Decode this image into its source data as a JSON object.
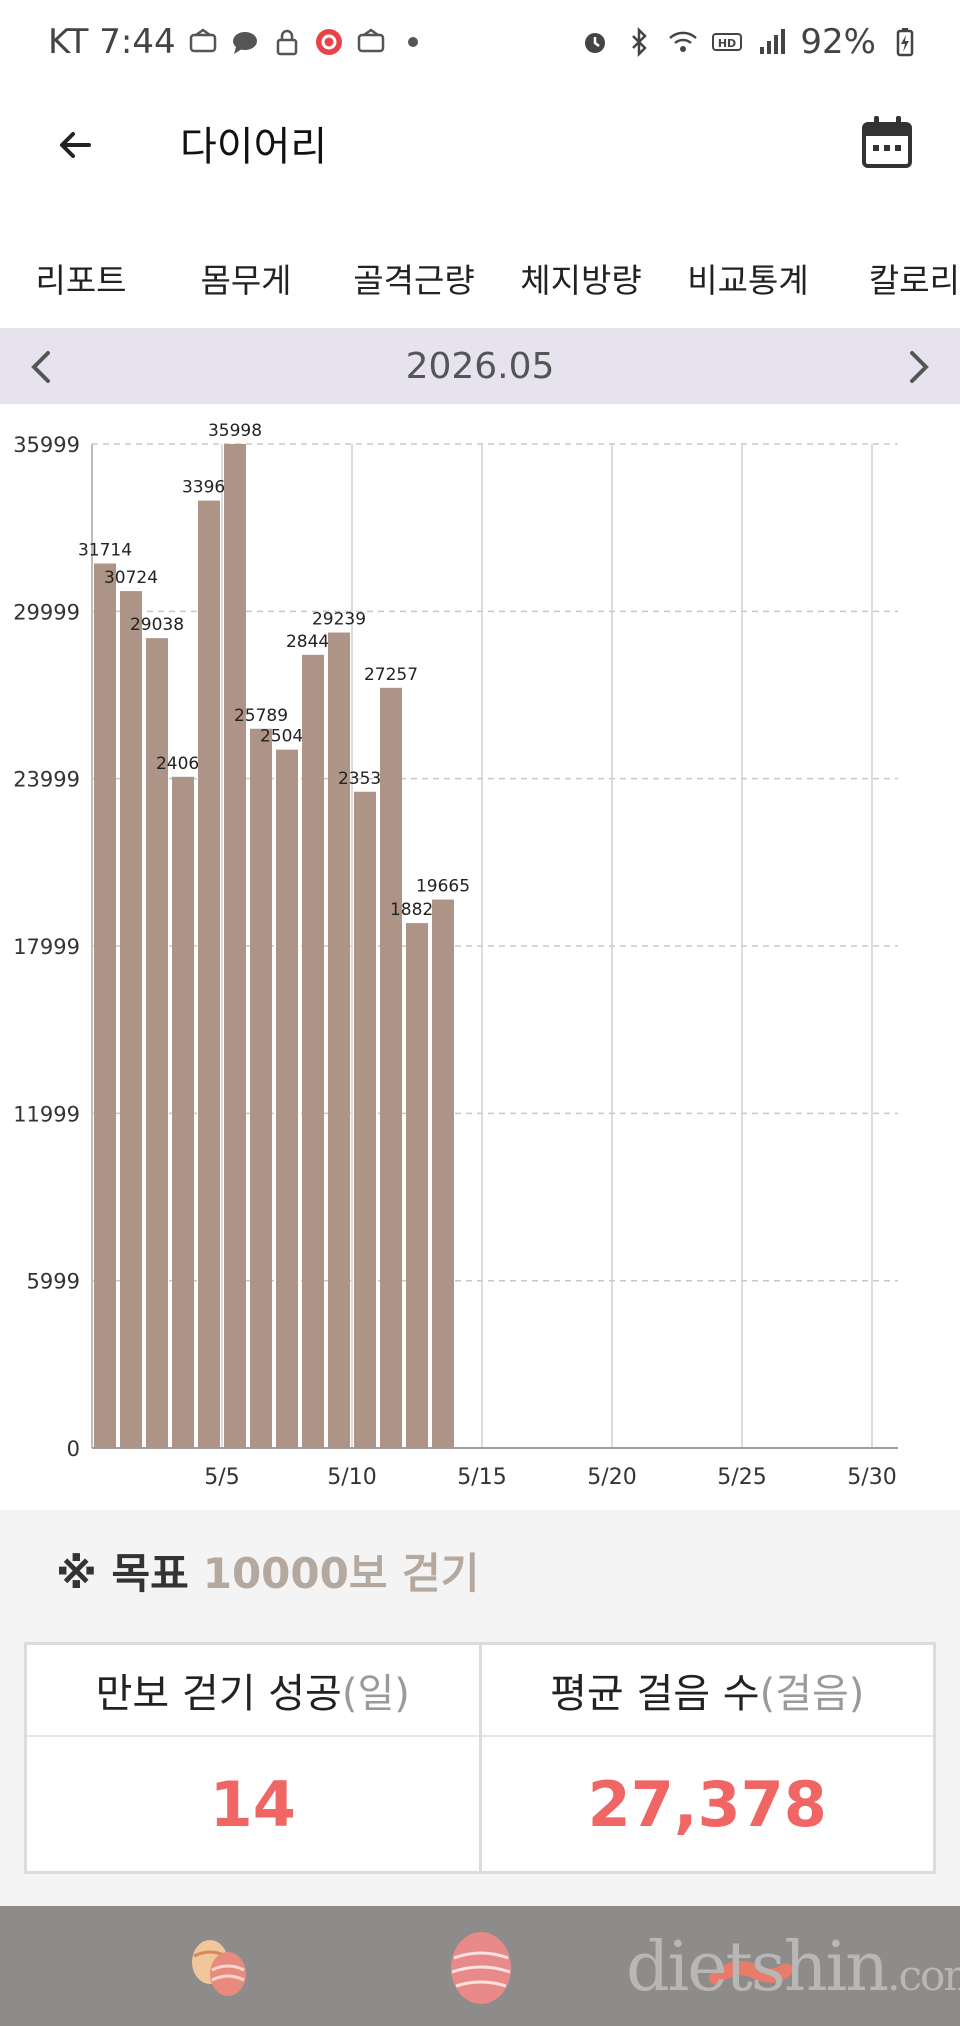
{
  "status_bar": {
    "carrier_time": "KT 7:44",
    "battery": "92%",
    "left_icons": [
      "news-icon",
      "chat-icon",
      "lock-icon",
      "record-icon",
      "news-icon",
      "dot-icon"
    ],
    "right_icons": [
      "alarm-icon",
      "bluetooth-icon",
      "wifi-icon",
      "hd-icon",
      "signal-icon",
      "battery-icon"
    ]
  },
  "app_bar": {
    "title": "다이어리"
  },
  "tabs": [
    {
      "label": "리포트"
    },
    {
      "label": "몸무게"
    },
    {
      "label": "골격근량"
    },
    {
      "label": "체지방량"
    },
    {
      "label": "비교통계"
    },
    {
      "label": "칼로리"
    }
  ],
  "month_nav": {
    "label": "2026.05"
  },
  "chart_data": {
    "type": "bar",
    "x": [
      1,
      2,
      3,
      4,
      5,
      6,
      7,
      8,
      9,
      10,
      11,
      12,
      13,
      14
    ],
    "values": [
      31714,
      30724,
      29038,
      24066,
      33969,
      35998,
      25789,
      25040,
      28441,
      29239,
      23530,
      27257,
      18822,
      19665
    ],
    "x_range": [
      1,
      31
    ],
    "x_tick_labels": [
      "5/5",
      "5/10",
      "5/15",
      "5/20",
      "5/25",
      "5/30"
    ],
    "x_tick_days": [
      5,
      10,
      15,
      20,
      25,
      30
    ],
    "y_tick_labels": [
      "0",
      "5999",
      "11999",
      "17999",
      "23999",
      "29999",
      "35999"
    ],
    "y_tick_values": [
      0,
      5999,
      11999,
      17999,
      23999,
      29999,
      35999
    ],
    "ylim": [
      0,
      35999
    ],
    "bar_color": "#ad9487",
    "grid": true
  },
  "goal": {
    "prefix": "※ 목표",
    "value": "10000보 걷기"
  },
  "stats": [
    {
      "label": "만보 걷기 성공",
      "unit": "(일)",
      "value": "14"
    },
    {
      "label": "평균 걸음 수",
      "unit": "(걸음)",
      "value": "27,378"
    }
  ],
  "bottom_nav": [
    "eggs-icon",
    "easter-egg-icon",
    "sausage-icon"
  ],
  "watermark": {
    "main": "dietshin",
    "suffix": ".com"
  },
  "colors": {
    "accent_red": "#ef6664",
    "goal_accent": "#b5a89e",
    "month_bar_bg": "#e6e3ee",
    "bottom_bar": "#8e8c8b"
  }
}
